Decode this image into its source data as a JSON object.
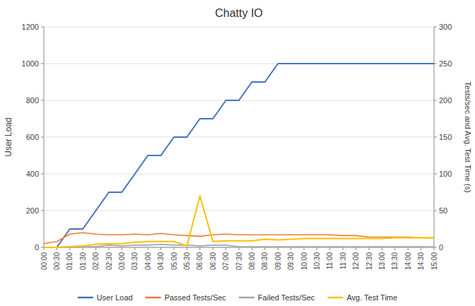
{
  "chart_data": {
    "type": "line",
    "title": "Chatty IO",
    "ylabel": "User Load",
    "y2label": "Tests/sec and Avg. Test Time (s)",
    "categories": [
      "00:00",
      "00:30",
      "01:00",
      "01:30",
      "02:00",
      "02:30",
      "03:00",
      "03:30",
      "04:00",
      "04:30",
      "05:00",
      "05:30",
      "06:00",
      "06:30",
      "07:00",
      "07:30",
      "08:00",
      "08:30",
      "09:00",
      "09:30",
      "10:00",
      "10:30",
      "11:00",
      "11:30",
      "12:00",
      "12:30",
      "13:00",
      "13:30",
      "14:00",
      "14:30",
      "15:00"
    ],
    "series": [
      {
        "name": "User Load",
        "color": "#4472C4",
        "axis": "y",
        "values": [
          0,
          0,
          100,
          100,
          200,
          300,
          300,
          400,
          500,
          500,
          600,
          600,
          700,
          700,
          800,
          800,
          900,
          900,
          1000,
          1000,
          1000,
          1000,
          1000,
          1000,
          1000,
          1000,
          1000,
          1000,
          1000,
          1000,
          1000
        ]
      },
      {
        "name": "Passed Tests/Sec",
        "color": "#ED7D31",
        "axis": "y2",
        "values": [
          5,
          8,
          18,
          20,
          18,
          17,
          17,
          18,
          17,
          19,
          17,
          16,
          15,
          17,
          18,
          17,
          17,
          17,
          17,
          17,
          17,
          17,
          17,
          16,
          16,
          14,
          14,
          14,
          14,
          13,
          13
        ]
      },
      {
        "name": "Failed Tests/Sec",
        "color": "#A5A5A5",
        "axis": "y2",
        "values": [
          0,
          0,
          0,
          1,
          1,
          3,
          2,
          3,
          3,
          4,
          3,
          3,
          2,
          3,
          3,
          1,
          1,
          1,
          1,
          1,
          1,
          1,
          1,
          1,
          1,
          1,
          1,
          1,
          1,
          1,
          1
        ]
      },
      {
        "name": "Avg. Test Time",
        "color": "#FFC000",
        "axis": "y2",
        "values": [
          0,
          0,
          1,
          2,
          4,
          5,
          5,
          7,
          8,
          8,
          8,
          2,
          70,
          8,
          9,
          9,
          9,
          11,
          10,
          11,
          12,
          12,
          12,
          12,
          12,
          12,
          12,
          13,
          13,
          13,
          13
        ]
      }
    ],
    "ylim": [
      0,
      1200
    ],
    "yticks": [
      0,
      200,
      400,
      600,
      800,
      1000,
      1200
    ],
    "y2lim": [
      0,
      300
    ],
    "y2ticks": [
      0,
      50,
      100,
      150,
      200,
      250,
      300
    ],
    "grid": true,
    "legend": "bottom"
  }
}
